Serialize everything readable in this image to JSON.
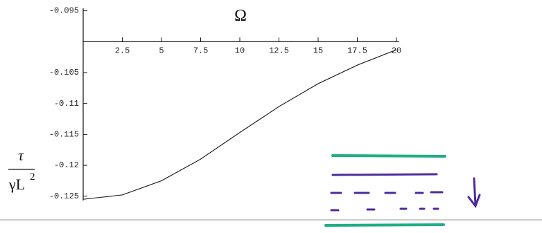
{
  "chart_data": {
    "type": "line",
    "x_label": "Ω",
    "y_label": {
      "numerator": "τ",
      "denominator": "γL",
      "exponent": "2"
    },
    "x": [
      0,
      2.5,
      5,
      7.5,
      10,
      12.5,
      15,
      17.5,
      20
    ],
    "series": [
      {
        "color": "#222222",
        "values": [
          -0.1255,
          -0.1248,
          -0.1225,
          -0.119,
          -0.1147,
          -0.1105,
          -0.1068,
          -0.1038,
          -0.1013
        ]
      }
    ],
    "xlim": [
      0,
      20
    ],
    "xticks": [
      2.5,
      5,
      7.5,
      10,
      12.5,
      15,
      17.5,
      20
    ],
    "ylim": [
      -0.1257,
      -0.0946
    ],
    "yticks": [
      -0.095,
      -0.105,
      -0.11,
      -0.115,
      -0.12,
      -0.125
    ],
    "x_axis_at": -0.1
  }
}
